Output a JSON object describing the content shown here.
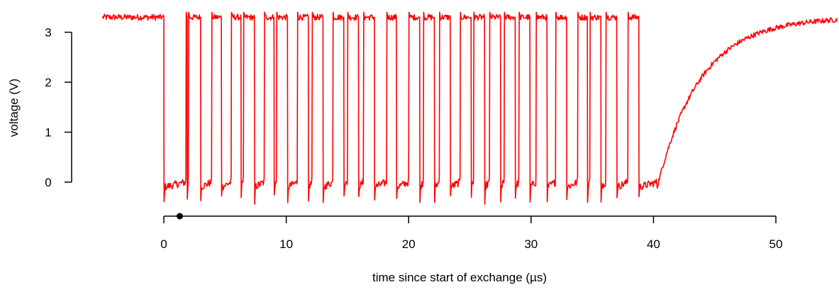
{
  "chart_data": {
    "type": "line",
    "title": "",
    "xlabel": "time since start of exchange (µs)",
    "ylabel": "voltage (V)",
    "xlim": [
      -5,
      55
    ],
    "ylim": [
      -0.55,
      3.55
    ],
    "x_ticks": [
      0,
      10,
      20,
      30,
      40,
      50
    ],
    "x_tick_labels": [
      "0",
      "10",
      "20",
      "30",
      "40",
      "50"
    ],
    "y_ticks": [
      0,
      1,
      2,
      3
    ],
    "y_tick_labels": [
      "0",
      "1",
      "2",
      "3"
    ],
    "grid": false,
    "legend": "none",
    "marker": {
      "x": 1.3
    },
    "series": [
      {
        "color": "#ff0000",
        "high_level": 3.3,
        "low_level": -0.1,
        "idle_before": [
          -5.0,
          0.0
        ],
        "low_intervals": [
          [
            0.0,
            1.8
          ],
          [
            1.9,
            2.0
          ],
          [
            3.0,
            3.9
          ],
          [
            4.7,
            5.5
          ],
          [
            6.3,
            6.5
          ],
          [
            7.4,
            8.2
          ],
          [
            9.0,
            9.2
          ],
          [
            10.1,
            10.9
          ],
          [
            11.8,
            12.1
          ],
          [
            13.0,
            13.8
          ],
          [
            14.7,
            15.0
          ],
          [
            15.9,
            16.3
          ],
          [
            17.2,
            18.2
          ],
          [
            19.0,
            20.0
          ],
          [
            20.9,
            21.2
          ],
          [
            22.1,
            22.5
          ],
          [
            23.4,
            24.2
          ],
          [
            25.1,
            25.3
          ],
          [
            26.2,
            26.6
          ],
          [
            27.5,
            27.8
          ],
          [
            28.7,
            29.0
          ],
          [
            29.9,
            30.4
          ],
          [
            31.3,
            32.0
          ],
          [
            32.9,
            33.8
          ],
          [
            34.6,
            34.8
          ],
          [
            35.7,
            36.1
          ],
          [
            37.0,
            37.9
          ],
          [
            38.8,
            40.3
          ]
        ],
        "rise_start": 40.3,
        "rise_time_constant": 3.5,
        "end": 55.0
      }
    ]
  }
}
